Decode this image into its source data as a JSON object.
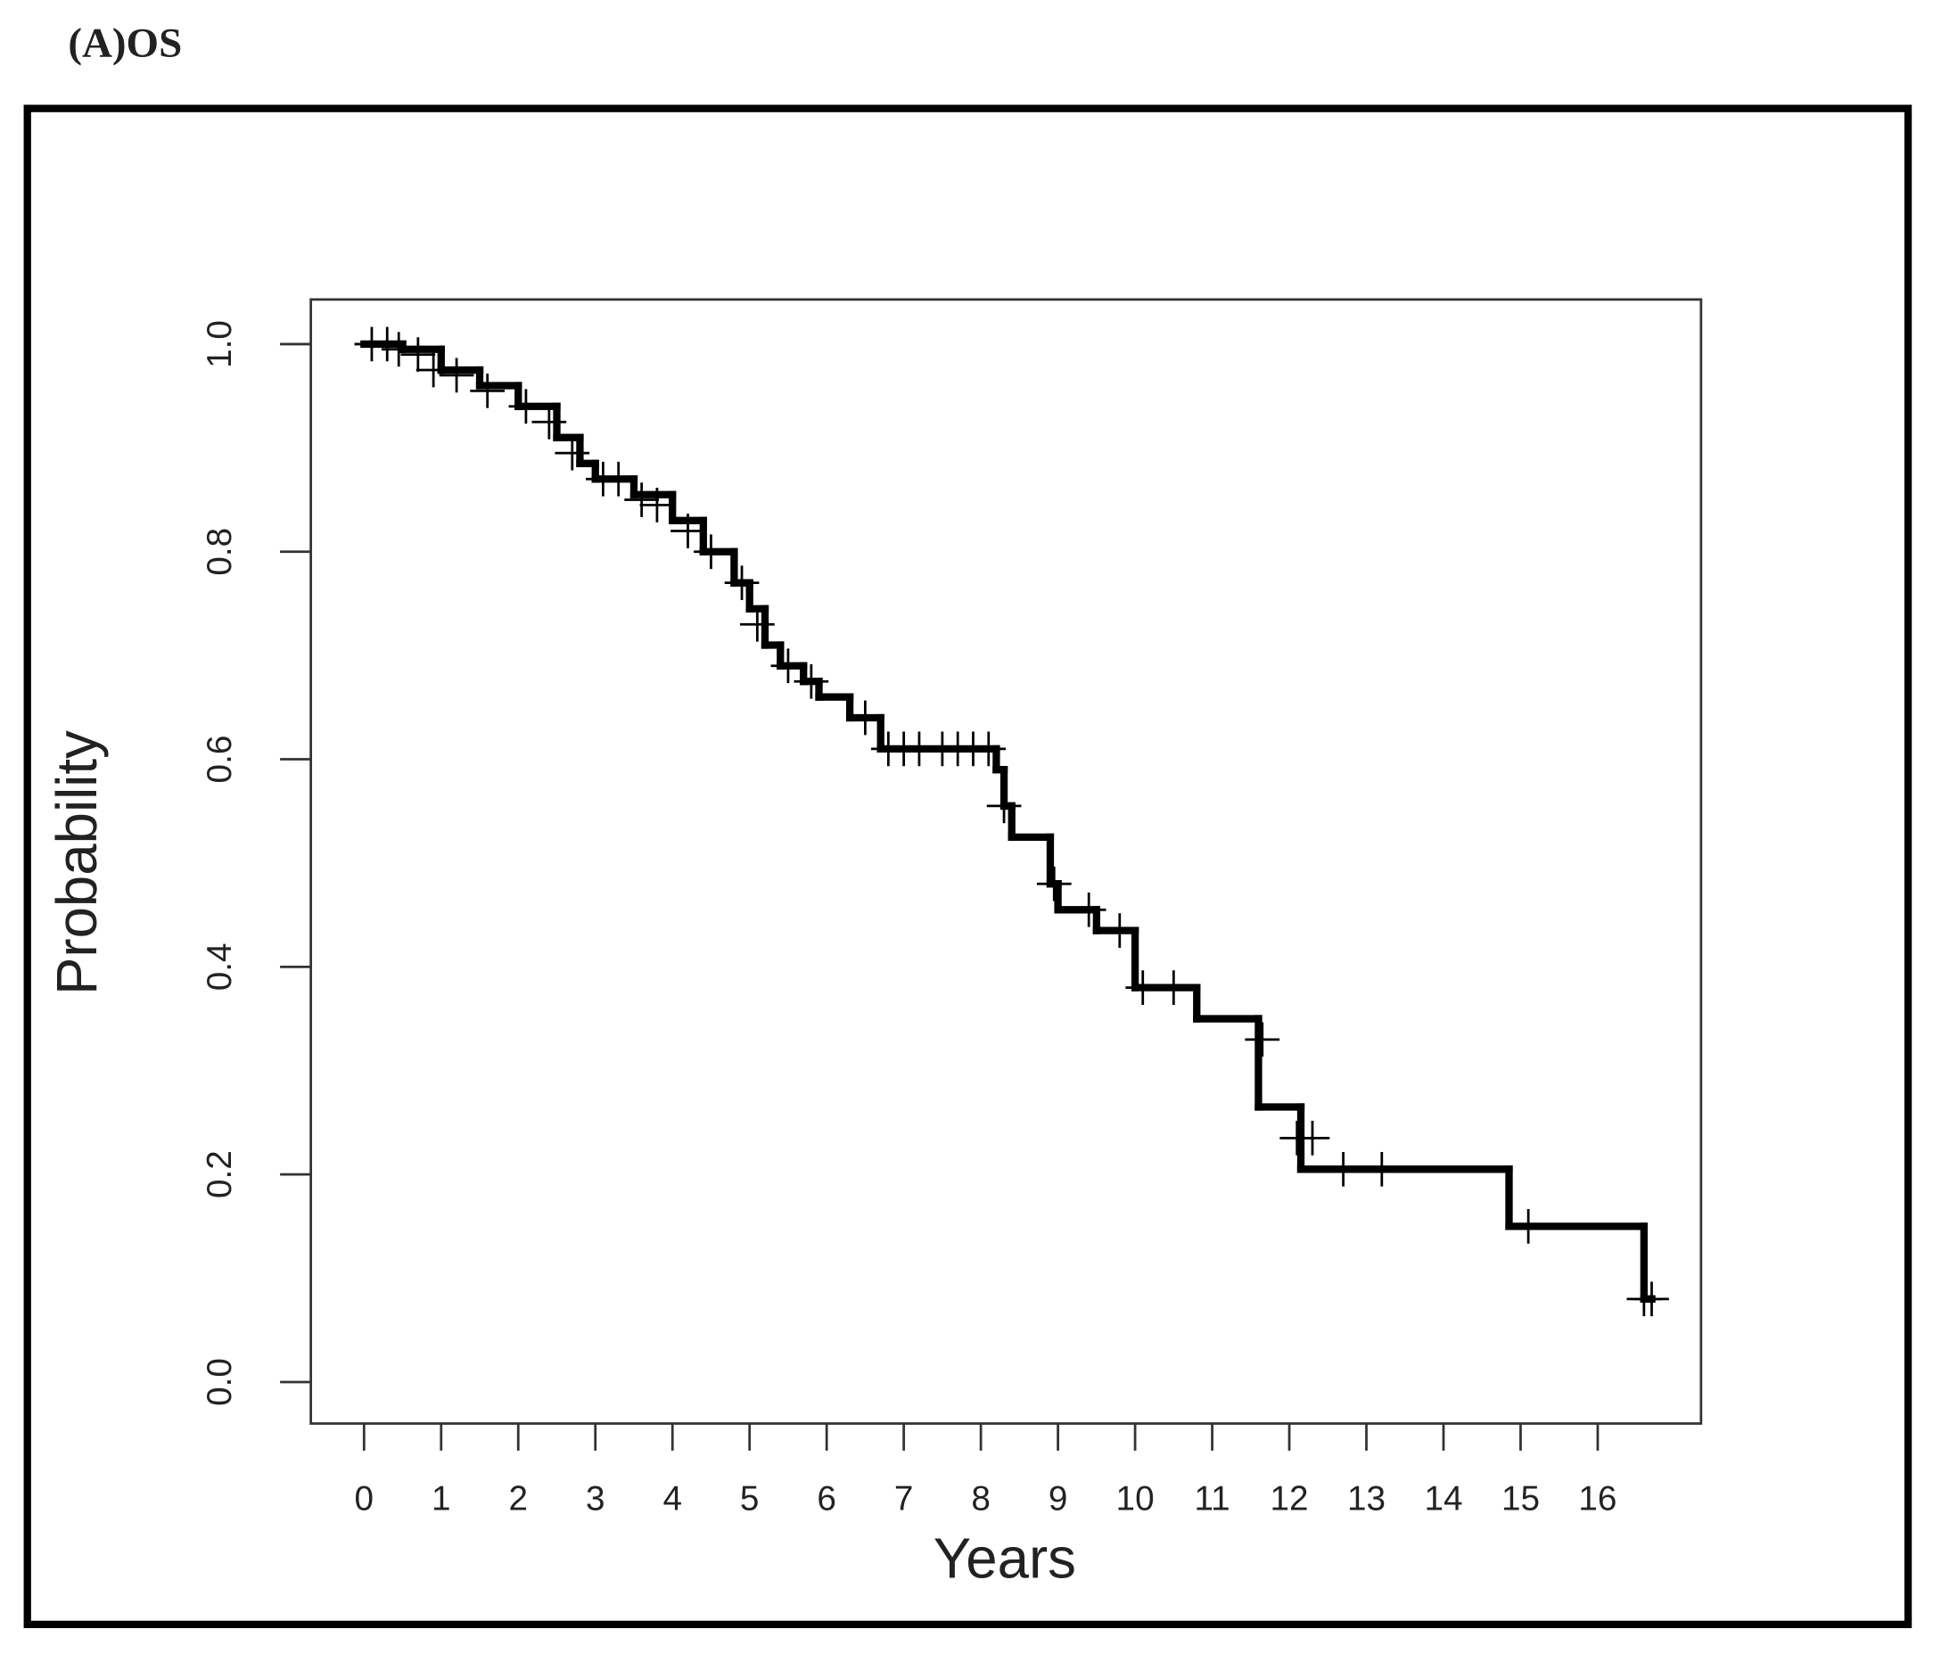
{
  "chart_data": {
    "type": "step",
    "title": "(A)OS",
    "x_label": "Years",
    "y_label": "Probability",
    "x": [
      0,
      0.5,
      1.0,
      1.5,
      2.0,
      2.5,
      2.8,
      3.0,
      3.5,
      4.0,
      4.4,
      4.8,
      5.0,
      5.2,
      5.4,
      5.7,
      5.9,
      6.3,
      6.7,
      8.2,
      8.3,
      8.4,
      8.9,
      9.0,
      9.5,
      10.0,
      10.8,
      11.6,
      12.15,
      14.85,
      16.6,
      16.7
    ],
    "values": [
      1.0,
      0.995,
      0.975,
      0.96,
      0.94,
      0.91,
      0.885,
      0.87,
      0.855,
      0.83,
      0.8,
      0.77,
      0.745,
      0.71,
      0.69,
      0.675,
      0.66,
      0.64,
      0.61,
      0.59,
      0.555,
      0.525,
      0.48,
      0.455,
      0.435,
      0.38,
      0.35,
      0.265,
      0.205,
      0.15,
      0.08,
      0.08
    ],
    "censored": {
      "x": [
        0.1,
        0.3,
        0.45,
        0.7,
        0.9,
        1.2,
        1.6,
        2.1,
        2.4,
        2.7,
        3.1,
        3.3,
        3.6,
        3.8,
        4.2,
        4.5,
        4.9,
        5.1,
        5.5,
        5.8,
        6.5,
        6.8,
        7.0,
        7.2,
        7.5,
        7.7,
        7.9,
        8.1,
        8.3,
        8.95,
        9.4,
        9.8,
        10.1,
        10.5,
        11.65,
        12.1,
        12.3,
        12.7,
        13.2,
        15.1,
        16.6,
        16.7
      ],
      "values": [
        1.0,
        1.0,
        0.995,
        0.99,
        0.975,
        0.97,
        0.955,
        0.94,
        0.925,
        0.895,
        0.87,
        0.87,
        0.85,
        0.845,
        0.82,
        0.8,
        0.77,
        0.73,
        0.69,
        0.675,
        0.64,
        0.61,
        0.61,
        0.61,
        0.61,
        0.61,
        0.61,
        0.61,
        0.555,
        0.48,
        0.455,
        0.435,
        0.38,
        0.38,
        0.33,
        0.235,
        0.235,
        0.205,
        0.205,
        0.15,
        0.08,
        0.08
      ]
    },
    "color": "#000000",
    "xlim": [
      -0.69,
      17.34
    ],
    "ylim": [
      -0.04,
      1.043
    ],
    "xticks": [
      0,
      1,
      2,
      3,
      4,
      5,
      6,
      7,
      8,
      9,
      10,
      11,
      12,
      13,
      14,
      15,
      16
    ],
    "yticks": [
      {
        "value": 0,
        "label": "0.0"
      },
      0.2,
      0.4,
      0.6,
      0.8,
      {
        "value": 1,
        "label": "1.0"
      }
    ]
  }
}
